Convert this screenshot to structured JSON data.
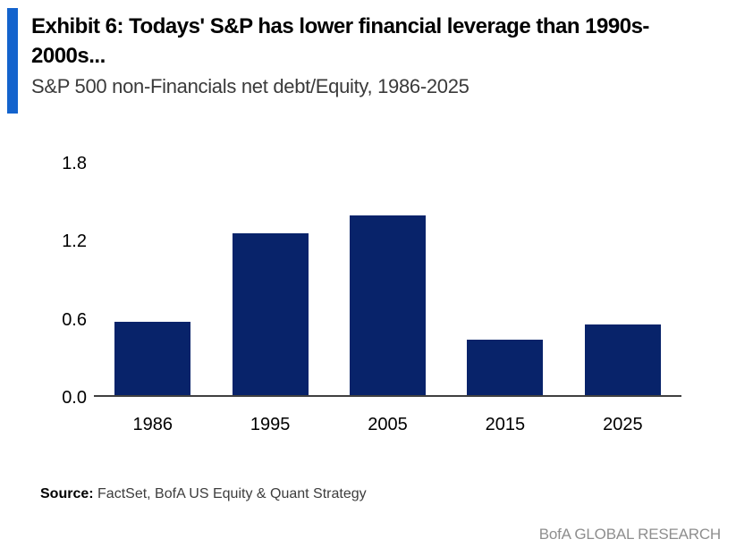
{
  "header": {
    "title_line1": "Exhibit 6: Todays' S&P has lower financial leverage than 1990s-",
    "title_line2": "2000s...",
    "subtitle": "S&P 500 non-Financials net debt/Equity, 1986-2025"
  },
  "chart_data": {
    "type": "bar",
    "title": "S&P 500 non-Financials net debt/Equity, 1986-2025",
    "categories": [
      "1986",
      "1995",
      "2005",
      "2015",
      "2025"
    ],
    "values": [
      0.57,
      1.25,
      1.39,
      0.43,
      0.55
    ],
    "xlabel": "",
    "ylabel": "",
    "ylim": [
      0,
      1.8
    ],
    "yticks": [
      "0.0",
      "0.6",
      "1.2",
      "1.8"
    ],
    "grid": false,
    "legend": false,
    "bar_color": "#08236A",
    "axis_color": "#404040"
  },
  "footer": {
    "source_label": "Source:",
    "source_text": " FactSet, BofA US Equity & Quant Strategy",
    "brand": "BofA GLOBAL RESEARCH"
  },
  "colors": {
    "accent_bar": "#1363CD"
  }
}
